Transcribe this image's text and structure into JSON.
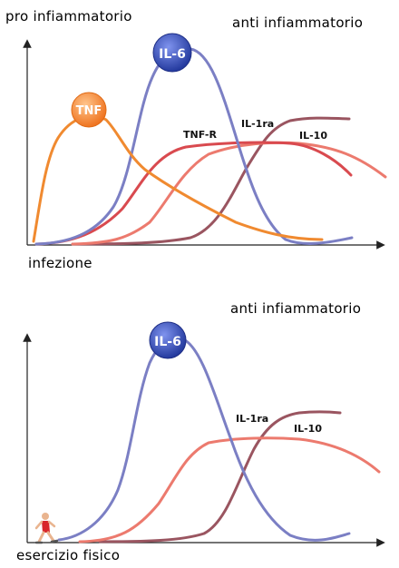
{
  "top_panel": {
    "title_left": "pro infiammatorio",
    "title_right": "anti infiammatorio",
    "xlabel": "infezione",
    "badges": {
      "tnf": "TNF",
      "il6": "IL-6"
    },
    "curve_labels": {
      "tnf_r": "TNF-R",
      "il1ra": "IL-1ra",
      "il10": "IL-10"
    }
  },
  "bottom_panel": {
    "title_right": "anti infiammatorio",
    "xlabel": "esercizio fisico",
    "badges": {
      "il6": "IL-6"
    },
    "curve_labels": {
      "il1ra": "IL-1ra",
      "il10": "IL-10"
    }
  },
  "colors": {
    "tnf": "#f08a30",
    "il6": "#7b7fc4",
    "tnf_r": "#d94a4f",
    "il1ra": "#9a5560",
    "il10": "#ec7a6e",
    "badge_blue": "#2f43a8",
    "badge_orange": "#f07a22"
  },
  "icons": {
    "runner": "runner-icon"
  }
}
